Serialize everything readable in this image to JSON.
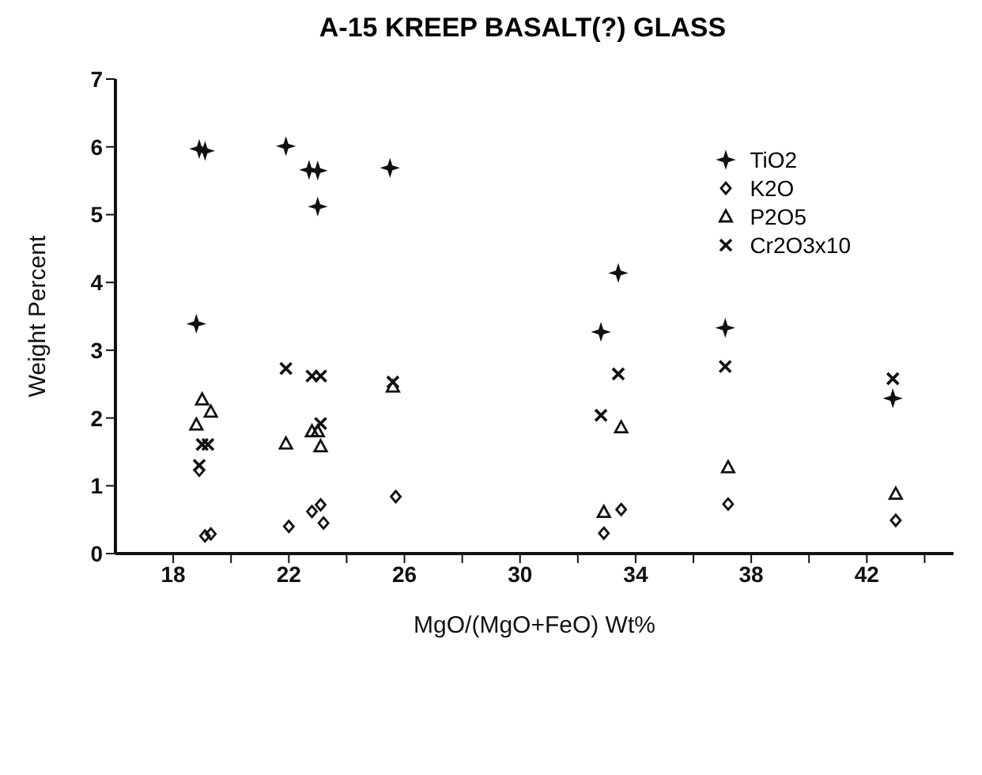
{
  "chart_data": {
    "type": "scatter",
    "title": "A-15 KREEP BASALT(?) GLASS",
    "xlabel": "MgO/(MgO+FeO) Wt%",
    "ylabel": "Weight Percent",
    "xlim": [
      16,
      45
    ],
    "xticks": [
      18,
      {
        "value": 20,
        "label": null
      },
      22,
      {
        "value": 24,
        "label": null
      },
      26,
      {
        "value": 28,
        "label": null
      },
      30,
      {
        "value": 32,
        "label": null
      },
      34,
      {
        "value": 36,
        "label": null
      },
      38,
      {
        "value": 40,
        "label": null
      },
      42,
      {
        "value": 44,
        "label": null
      }
    ],
    "ylim": [
      0,
      7
    ],
    "yticks": [
      0,
      1,
      2,
      3,
      4,
      5,
      6,
      7
    ],
    "grid": false,
    "legend": "top right",
    "series": [
      {
        "name": "TiO2",
        "color": "#111111",
        "marker": "star",
        "x": [
          18.9,
          19.1,
          21.9,
          22.7,
          23.0,
          23.0,
          25.5,
          18.8,
          33.4,
          32.8,
          37.1,
          42.9
        ],
        "values": [
          5.97,
          5.94,
          6.01,
          5.66,
          5.65,
          5.12,
          5.69,
          3.39,
          4.14,
          3.27,
          3.33,
          2.29
        ]
      },
      {
        "name": "K2O",
        "color": "#111111",
        "marker": "diamond",
        "x": [
          18.9,
          19.1,
          19.3,
          22.0,
          22.8,
          23.1,
          23.2,
          25.7,
          32.9,
          33.5,
          37.2,
          43.0
        ],
        "values": [
          1.23,
          0.26,
          0.29,
          0.4,
          0.62,
          0.72,
          0.45,
          0.84,
          0.3,
          0.65,
          0.73,
          0.49
        ]
      },
      {
        "name": "P2O5",
        "color": "#111111",
        "marker": "triangle",
        "x": [
          19.0,
          19.3,
          18.8,
          21.9,
          22.8,
          23.0,
          23.1,
          25.6,
          32.9,
          33.5,
          37.2,
          43.0
        ],
        "values": [
          2.27,
          2.09,
          1.9,
          1.62,
          1.8,
          1.8,
          1.58,
          2.46,
          0.61,
          1.86,
          1.27,
          0.88
        ]
      },
      {
        "name": "Cr2O3x10",
        "color": "#111111",
        "marker": "cross",
        "x": [
          18.9,
          19.0,
          19.2,
          21.9,
          22.8,
          23.1,
          23.1,
          25.6,
          32.8,
          33.4,
          37.1,
          42.9
        ],
        "values": [
          1.3,
          1.61,
          1.61,
          2.73,
          2.62,
          2.62,
          1.92,
          2.53,
          2.04,
          2.65,
          2.76,
          2.58
        ]
      }
    ]
  }
}
